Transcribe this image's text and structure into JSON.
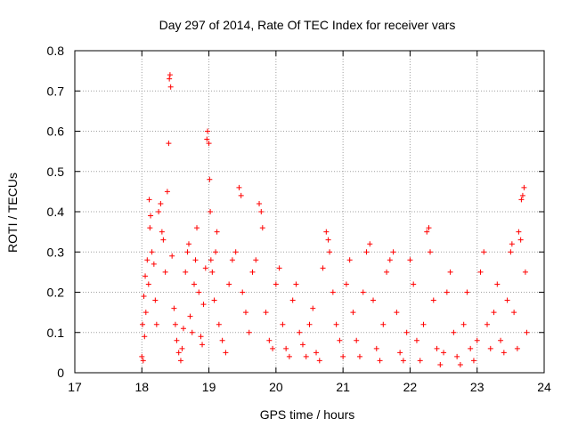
{
  "chart_data": {
    "type": "scatter",
    "title": "Day 297 of 2014, Rate Of TEC Index for receiver vars",
    "xlabel": "GPS time / hours",
    "ylabel": "ROTI / TECUs",
    "xlim": [
      17,
      24
    ],
    "ylim": [
      0,
      0.8
    ],
    "xticks": [
      "17",
      "18",
      "19",
      "20",
      "21",
      "22",
      "23",
      "24"
    ],
    "yticks": [
      "0",
      "0.1",
      "0.2",
      "0.3",
      "0.4",
      "0.5",
      "0.6",
      "0.7",
      "0.8"
    ],
    "grid": true,
    "marker": "+",
    "color": "#ff0000",
    "series": [
      {
        "name": "ROTI",
        "points": [
          [
            18.0,
            0.04
          ],
          [
            18.02,
            0.03
          ],
          [
            18.01,
            0.12
          ],
          [
            18.03,
            0.19
          ],
          [
            18.05,
            0.24
          ],
          [
            18.04,
            0.09
          ],
          [
            18.06,
            0.15
          ],
          [
            18.08,
            0.28
          ],
          [
            18.1,
            0.22
          ],
          [
            18.12,
            0.36
          ],
          [
            18.11,
            0.43
          ],
          [
            18.13,
            0.39
          ],
          [
            18.15,
            0.3
          ],
          [
            18.18,
            0.27
          ],
          [
            18.2,
            0.18
          ],
          [
            18.22,
            0.12
          ],
          [
            18.25,
            0.4
          ],
          [
            18.28,
            0.42
          ],
          [
            18.3,
            0.35
          ],
          [
            18.32,
            0.33
          ],
          [
            18.35,
            0.25
          ],
          [
            18.38,
            0.45
          ],
          [
            18.4,
            0.57
          ],
          [
            18.42,
            0.74
          ],
          [
            18.41,
            0.73
          ],
          [
            18.43,
            0.71
          ],
          [
            18.45,
            0.29
          ],
          [
            18.48,
            0.16
          ],
          [
            18.5,
            0.12
          ],
          [
            18.52,
            0.08
          ],
          [
            18.55,
            0.05
          ],
          [
            18.58,
            0.03
          ],
          [
            18.6,
            0.06
          ],
          [
            18.62,
            0.11
          ],
          [
            18.65,
            0.25
          ],
          [
            18.68,
            0.3
          ],
          [
            18.7,
            0.32
          ],
          [
            18.72,
            0.14
          ],
          [
            18.75,
            0.1
          ],
          [
            18.78,
            0.22
          ],
          [
            18.8,
            0.28
          ],
          [
            18.82,
            0.36
          ],
          [
            18.85,
            0.2
          ],
          [
            18.88,
            0.09
          ],
          [
            18.9,
            0.07
          ],
          [
            18.92,
            0.17
          ],
          [
            18.95,
            0.26
          ],
          [
            18.97,
            0.58
          ],
          [
            18.98,
            0.6
          ],
          [
            19.0,
            0.57
          ],
          [
            19.01,
            0.48
          ],
          [
            19.02,
            0.4
          ],
          [
            19.03,
            0.28
          ],
          [
            19.05,
            0.25
          ],
          [
            19.08,
            0.18
          ],
          [
            19.1,
            0.3
          ],
          [
            19.12,
            0.35
          ],
          [
            19.15,
            0.12
          ],
          [
            19.2,
            0.08
          ],
          [
            19.25,
            0.05
          ],
          [
            19.3,
            0.22
          ],
          [
            19.35,
            0.28
          ],
          [
            19.4,
            0.3
          ],
          [
            19.45,
            0.46
          ],
          [
            19.48,
            0.44
          ],
          [
            19.5,
            0.2
          ],
          [
            19.55,
            0.15
          ],
          [
            19.6,
            0.1
          ],
          [
            19.65,
            0.25
          ],
          [
            19.7,
            0.28
          ],
          [
            19.75,
            0.42
          ],
          [
            19.78,
            0.4
          ],
          [
            19.8,
            0.36
          ],
          [
            19.85,
            0.15
          ],
          [
            19.9,
            0.08
          ],
          [
            19.95,
            0.06
          ],
          [
            20.0,
            0.22
          ],
          [
            20.05,
            0.26
          ],
          [
            20.1,
            0.12
          ],
          [
            20.15,
            0.06
          ],
          [
            20.2,
            0.04
          ],
          [
            20.25,
            0.18
          ],
          [
            20.3,
            0.22
          ],
          [
            20.35,
            0.1
          ],
          [
            20.4,
            0.07
          ],
          [
            20.45,
            0.04
          ],
          [
            20.5,
            0.12
          ],
          [
            20.55,
            0.16
          ],
          [
            20.6,
            0.05
          ],
          [
            20.65,
            0.03
          ],
          [
            20.7,
            0.26
          ],
          [
            20.75,
            0.35
          ],
          [
            20.78,
            0.33
          ],
          [
            20.8,
            0.3
          ],
          [
            20.85,
            0.2
          ],
          [
            20.9,
            0.12
          ],
          [
            20.95,
            0.08
          ],
          [
            21.0,
            0.04
          ],
          [
            21.05,
            0.22
          ],
          [
            21.1,
            0.28
          ],
          [
            21.15,
            0.15
          ],
          [
            21.2,
            0.08
          ],
          [
            21.25,
            0.04
          ],
          [
            21.3,
            0.2
          ],
          [
            21.35,
            0.3
          ],
          [
            21.4,
            0.32
          ],
          [
            21.45,
            0.18
          ],
          [
            21.5,
            0.06
          ],
          [
            21.55,
            0.03
          ],
          [
            21.6,
            0.12
          ],
          [
            21.65,
            0.25
          ],
          [
            21.7,
            0.28
          ],
          [
            21.75,
            0.3
          ],
          [
            21.8,
            0.15
          ],
          [
            21.85,
            0.05
          ],
          [
            21.9,
            0.03
          ],
          [
            21.95,
            0.1
          ],
          [
            22.0,
            0.28
          ],
          [
            22.05,
            0.22
          ],
          [
            22.1,
            0.08
          ],
          [
            22.15,
            0.03
          ],
          [
            22.2,
            0.12
          ],
          [
            22.25,
            0.35
          ],
          [
            22.28,
            0.36
          ],
          [
            22.3,
            0.3
          ],
          [
            22.35,
            0.18
          ],
          [
            22.4,
            0.06
          ],
          [
            22.45,
            0.02
          ],
          [
            22.5,
            0.05
          ],
          [
            22.55,
            0.2
          ],
          [
            22.6,
            0.25
          ],
          [
            22.65,
            0.1
          ],
          [
            22.7,
            0.04
          ],
          [
            22.75,
            0.02
          ],
          [
            22.8,
            0.12
          ],
          [
            22.85,
            0.2
          ],
          [
            22.9,
            0.06
          ],
          [
            22.95,
            0.03
          ],
          [
            23.0,
            0.08
          ],
          [
            23.05,
            0.25
          ],
          [
            23.1,
            0.3
          ],
          [
            23.15,
            0.12
          ],
          [
            23.2,
            0.06
          ],
          [
            23.25,
            0.15
          ],
          [
            23.3,
            0.22
          ],
          [
            23.35,
            0.08
          ],
          [
            23.4,
            0.05
          ],
          [
            23.45,
            0.18
          ],
          [
            23.5,
            0.3
          ],
          [
            23.52,
            0.32
          ],
          [
            23.55,
            0.15
          ],
          [
            23.6,
            0.06
          ],
          [
            23.62,
            0.35
          ],
          [
            23.65,
            0.33
          ],
          [
            23.66,
            0.43
          ],
          [
            23.68,
            0.44
          ],
          [
            23.7,
            0.46
          ],
          [
            23.72,
            0.25
          ],
          [
            23.74,
            0.1
          ]
        ]
      }
    ]
  }
}
